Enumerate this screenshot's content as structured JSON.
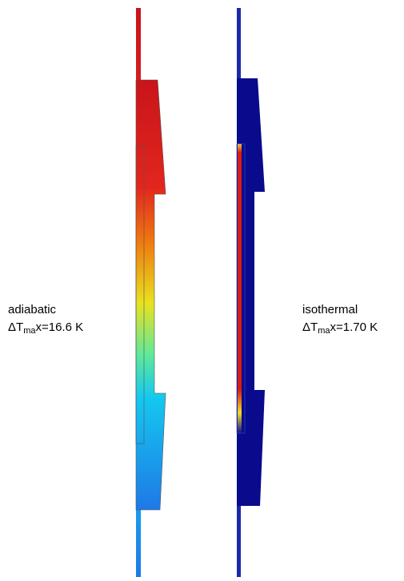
{
  "panels": [
    {
      "label": "adiabatic",
      "delta": "ΔT",
      "subscript": "ma",
      "rest": "x=16.6 K"
    },
    {
      "label": "isothermal",
      "delta": "ΔT",
      "subscript": "ma",
      "rest": "x=1.70 K"
    }
  ]
}
